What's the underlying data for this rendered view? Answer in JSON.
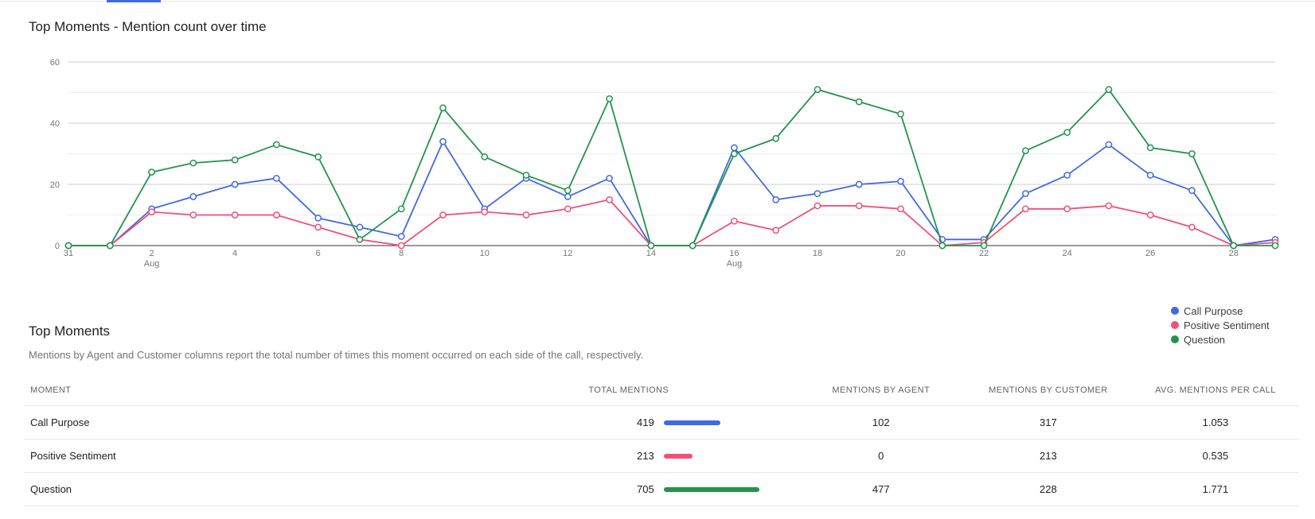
{
  "chart": {
    "title": "Top Moments - Mention count over time"
  },
  "chart_data": {
    "type": "line",
    "title": "Top Moments - Mention count over time",
    "xlabel": "",
    "ylabel": "",
    "ylim": [
      0,
      60
    ],
    "yticks": [
      0,
      20,
      40,
      60
    ],
    "grid": true,
    "legend_position": "bottom-right",
    "x": [
      31,
      1,
      2,
      3,
      4,
      5,
      6,
      7,
      8,
      9,
      10,
      11,
      12,
      13,
      14,
      15,
      16,
      17,
      18,
      19,
      20,
      21,
      22,
      23,
      24,
      25,
      26,
      27,
      28,
      29
    ],
    "x_tick_labels": [
      {
        "i": 0,
        "label": "31",
        "sub": ""
      },
      {
        "i": 2,
        "label": "2",
        "sub": "Aug"
      },
      {
        "i": 4,
        "label": "4",
        "sub": ""
      },
      {
        "i": 6,
        "label": "6",
        "sub": ""
      },
      {
        "i": 8,
        "label": "8",
        "sub": ""
      },
      {
        "i": 10,
        "label": "10",
        "sub": ""
      },
      {
        "i": 12,
        "label": "12",
        "sub": ""
      },
      {
        "i": 14,
        "label": "14",
        "sub": ""
      },
      {
        "i": 16,
        "label": "16",
        "sub": "Aug"
      },
      {
        "i": 18,
        "label": "18",
        "sub": ""
      },
      {
        "i": 20,
        "label": "20",
        "sub": ""
      },
      {
        "i": 22,
        "label": "22",
        "sub": ""
      },
      {
        "i": 24,
        "label": "24",
        "sub": ""
      },
      {
        "i": 26,
        "label": "26",
        "sub": ""
      },
      {
        "i": 28,
        "label": "28",
        "sub": ""
      }
    ],
    "series": [
      {
        "name": "Call Purpose",
        "color": "#4169e1",
        "values": [
          0,
          0,
          12,
          16,
          20,
          22,
          9,
          6,
          3,
          34,
          12,
          22,
          16,
          22,
          0,
          0,
          32,
          15,
          17,
          20,
          21,
          2,
          2,
          17,
          23,
          33,
          23,
          18,
          0,
          2
        ]
      },
      {
        "name": "Positive Sentiment",
        "color": "#f0507a",
        "values": [
          0,
          0,
          11,
          10,
          10,
          10,
          6,
          2,
          0,
          10,
          11,
          10,
          12,
          15,
          0,
          0,
          8,
          5,
          13,
          13,
          12,
          0,
          1,
          12,
          12,
          13,
          10,
          6,
          0,
          1
        ]
      },
      {
        "name": "Question",
        "color": "#22944d",
        "values": [
          0,
          0,
          24,
          27,
          28,
          33,
          29,
          2,
          12,
          45,
          29,
          23,
          18,
          48,
          0,
          0,
          30,
          35,
          51,
          47,
          43,
          0,
          0,
          31,
          37,
          51,
          32,
          30,
          0,
          0
        ]
      }
    ]
  },
  "legend": [
    {
      "label": "Call Purpose",
      "color": "#4169e1"
    },
    {
      "label": "Positive Sentiment",
      "color": "#f0507a"
    },
    {
      "label": "Question",
      "color": "#22944d"
    }
  ],
  "section": {
    "title": "Top Moments",
    "description": "Mentions by Agent and Customer columns report the total number of times this moment occurred on each side of the call, respectively."
  },
  "table": {
    "headers": {
      "moment": "MOMENT",
      "total": "TOTAL MENTIONS",
      "agent": "MENTIONS BY AGENT",
      "customer": "MENTIONS BY CUSTOMER",
      "avg": "AVG. MENTIONS PER CALL"
    },
    "rows": [
      {
        "moment": "Call Purpose",
        "total": "419",
        "total_value": 419,
        "agent": "102",
        "customer": "317",
        "avg": "1.053",
        "color": "#4169e1"
      },
      {
        "moment": "Positive Sentiment",
        "total": "213",
        "total_value": 213,
        "agent": "0",
        "customer": "213",
        "avg": "0.535",
        "color": "#f0507a"
      },
      {
        "moment": "Question",
        "total": "705",
        "total_value": 705,
        "agent": "477",
        "customer": "228",
        "avg": "1.771",
        "color": "#22944d"
      }
    ]
  }
}
